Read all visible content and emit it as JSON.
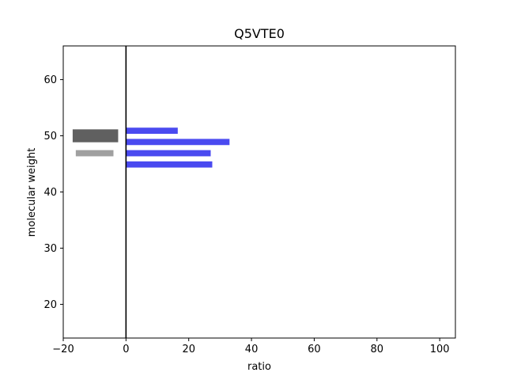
{
  "chart_data": {
    "type": "bar",
    "orientation": "horizontal",
    "title": "Q5VTE0",
    "xlabel": "ratio",
    "ylabel": "molecular weight",
    "xlim": [
      -20,
      105
    ],
    "ylim": [
      14,
      66
    ],
    "xticks": [
      -20,
      0,
      20,
      40,
      60,
      80,
      100
    ],
    "yticks": [
      20,
      30,
      40,
      50,
      60
    ],
    "grid": false,
    "reference_line_x": 0,
    "series": [
      {
        "color": "#4a4af0",
        "bars": [
          {
            "y": 50.9,
            "x_start": 0,
            "x_end": 16.5
          },
          {
            "y": 48.9,
            "x_start": 0,
            "x_end": 33
          },
          {
            "y": 46.9,
            "x_start": 0,
            "x_end": 27
          },
          {
            "y": 44.9,
            "x_start": 0,
            "x_end": 27.5
          }
        ]
      },
      {
        "color": "#606060",
        "bars": [
          {
            "y": 50,
            "x_start": -17,
            "x_end": -2.5,
            "height": 2.3
          }
        ]
      },
      {
        "color": "#a0a0a0",
        "bars": [
          {
            "y": 46.9,
            "x_start": -16,
            "x_end": -4
          }
        ]
      }
    ]
  }
}
